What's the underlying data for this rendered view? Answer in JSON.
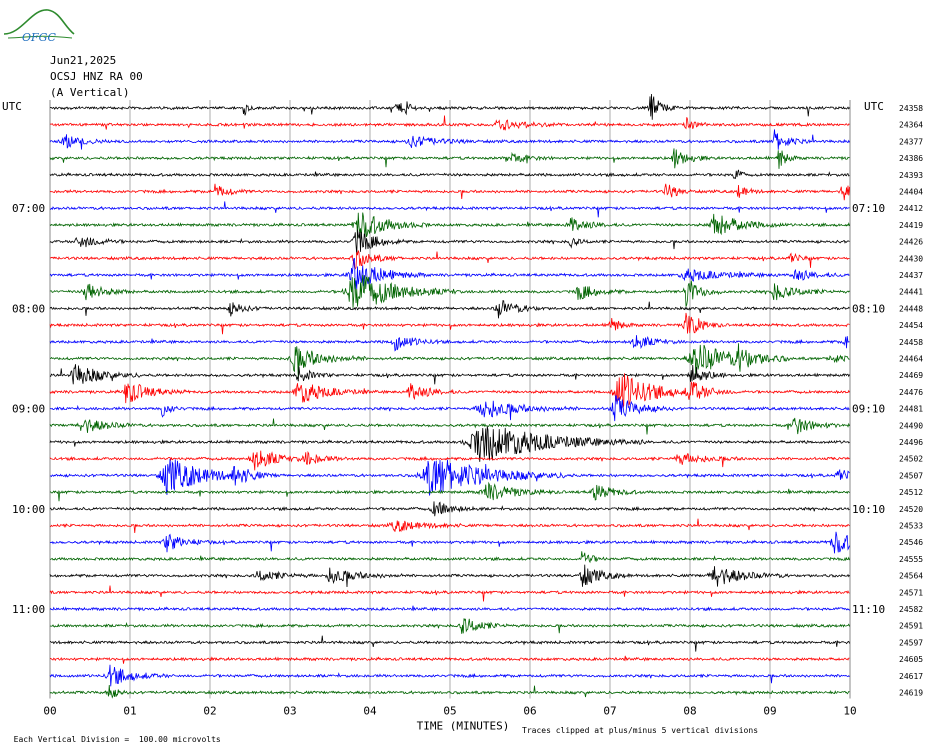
{
  "header": {
    "logo_text": "OFGC",
    "date": "Jun21,2025",
    "station": "OCSJ HNZ RA 00",
    "component": "(A Vertical)"
  },
  "chart_data": {
    "type": "line",
    "title": "",
    "xlabel": "TIME (MINUTES)",
    "xticks": [
      "00",
      "01",
      "02",
      "03",
      "04",
      "05",
      "06",
      "07",
      "08",
      "09",
      "10"
    ],
    "xlim": [
      0,
      10
    ],
    "left_axis_label": "UTC",
    "right_axis_label": "UTC",
    "left_time_labels": [
      {
        "row": 6,
        "label": "07:00"
      },
      {
        "row": 12,
        "label": "08:00"
      },
      {
        "row": 18,
        "label": "09:00"
      },
      {
        "row": 24,
        "label": "10:00"
      },
      {
        "row": 30,
        "label": "11:00"
      }
    ],
    "right_time_labels": [
      {
        "row": 6,
        "label": "07:10"
      },
      {
        "row": 12,
        "label": "08:10"
      },
      {
        "row": 18,
        "label": "09:10"
      },
      {
        "row": 24,
        "label": "10:10"
      },
      {
        "row": 30,
        "label": "11:10"
      }
    ],
    "right_row_numbers": [
      "24358",
      "24364",
      "24377",
      "24386",
      "24393",
      "24404",
      "24412",
      "24419",
      "24426",
      "24430",
      "24437",
      "24441",
      "24448",
      "24454",
      "24458",
      "24464",
      "24469",
      "24476",
      "24481",
      "24490",
      "24496",
      "24502",
      "24507",
      "24512",
      "24520",
      "24533",
      "24546",
      "24555",
      "24564",
      "24571",
      "24582",
      "24591",
      "24597",
      "24605",
      "24617",
      "24619"
    ],
    "trace_colors": [
      "#000000",
      "#ff0000",
      "#0000ff",
      "#006400"
    ],
    "vertical_scale_note": "Each Vertical Division =  100.00 microvolts",
    "clip_note": "Traces clipped at plus/minus 5 vertical divisions",
    "events": [
      {
        "row": 0,
        "t": 2.42,
        "amp": 9,
        "dur": 0.05
      },
      {
        "row": 0,
        "t": 4.32,
        "amp": 8,
        "dur": 0.08
      },
      {
        "row": 0,
        "t": 4.45,
        "amp": 10,
        "dur": 0.05
      },
      {
        "row": 0,
        "t": 7.5,
        "amp": 16,
        "dur": 0.12
      },
      {
        "row": 1,
        "t": 5.6,
        "amp": 6,
        "dur": 0.3
      },
      {
        "row": 1,
        "t": 7.95,
        "amp": 7,
        "dur": 0.1
      },
      {
        "row": 2,
        "t": 0.18,
        "amp": 7,
        "dur": 0.2
      },
      {
        "row": 2,
        "t": 4.5,
        "amp": 6,
        "dur": 0.3
      },
      {
        "row": 2,
        "t": 9.05,
        "amp": 12,
        "dur": 0.15
      },
      {
        "row": 3,
        "t": 5.7,
        "amp": 6,
        "dur": 0.2
      },
      {
        "row": 3,
        "t": 7.8,
        "amp": 10,
        "dur": 0.15
      },
      {
        "row": 3,
        "t": 9.1,
        "amp": 14,
        "dur": 0.08
      },
      {
        "row": 4,
        "t": 8.55,
        "amp": 12,
        "dur": 0.05
      },
      {
        "row": 5,
        "t": 2.05,
        "amp": 8,
        "dur": 0.15
      },
      {
        "row": 5,
        "t": 7.7,
        "amp": 9,
        "dur": 0.12
      },
      {
        "row": 5,
        "t": 8.6,
        "amp": 7,
        "dur": 0.1
      },
      {
        "row": 5,
        "t": 9.9,
        "amp": 11,
        "dur": 0.12
      },
      {
        "row": 7,
        "t": 3.85,
        "amp": 16,
        "dur": 0.3
      },
      {
        "row": 7,
        "t": 6.5,
        "amp": 8,
        "dur": 0.2
      },
      {
        "row": 7,
        "t": 8.3,
        "amp": 12,
        "dur": 0.3
      },
      {
        "row": 8,
        "t": 0.35,
        "amp": 8,
        "dur": 0.2
      },
      {
        "row": 8,
        "t": 3.82,
        "amp": 14,
        "dur": 0.2
      },
      {
        "row": 8,
        "t": 6.5,
        "amp": 6,
        "dur": 0.1
      },
      {
        "row": 9,
        "t": 3.8,
        "amp": 10,
        "dur": 0.2
      },
      {
        "row": 9,
        "t": 9.25,
        "amp": 6,
        "dur": 0.1
      },
      {
        "row": 10,
        "t": 3.78,
        "amp": 18,
        "dur": 0.3
      },
      {
        "row": 10,
        "t": 7.95,
        "amp": 6,
        "dur": 0.4
      },
      {
        "row": 10,
        "t": 9.3,
        "amp": 7,
        "dur": 0.2
      },
      {
        "row": 11,
        "t": 0.45,
        "amp": 10,
        "dur": 0.2
      },
      {
        "row": 11,
        "t": 3.78,
        "amp": 22,
        "dur": 0.45
      },
      {
        "row": 11,
        "t": 6.6,
        "amp": 8,
        "dur": 0.2
      },
      {
        "row": 11,
        "t": 7.95,
        "amp": 16,
        "dur": 0.15
      },
      {
        "row": 11,
        "t": 9.05,
        "amp": 9,
        "dur": 0.25
      },
      {
        "row": 12,
        "t": 2.25,
        "amp": 7,
        "dur": 0.15
      },
      {
        "row": 12,
        "t": 5.6,
        "amp": 10,
        "dur": 0.2
      },
      {
        "row": 13,
        "t": 7.0,
        "amp": 10,
        "dur": 0.1
      },
      {
        "row": 13,
        "t": 7.95,
        "amp": 16,
        "dur": 0.15
      },
      {
        "row": 14,
        "t": 4.3,
        "amp": 9,
        "dur": 0.2
      },
      {
        "row": 14,
        "t": 7.3,
        "amp": 8,
        "dur": 0.2
      },
      {
        "row": 14,
        "t": 9.95,
        "amp": 8,
        "dur": 0.2
      },
      {
        "row": 15,
        "t": 3.05,
        "amp": 14,
        "dur": 0.3
      },
      {
        "row": 15,
        "t": 8.05,
        "amp": 18,
        "dur": 0.4
      },
      {
        "row": 15,
        "t": 8.6,
        "amp": 10,
        "dur": 0.2
      },
      {
        "row": 15,
        "t": 9.75,
        "amp": 6,
        "dur": 0.15
      },
      {
        "row": 16,
        "t": 0.3,
        "amp": 12,
        "dur": 0.3
      },
      {
        "row": 16,
        "t": 3.1,
        "amp": 8,
        "dur": 0.15
      },
      {
        "row": 16,
        "t": 8.0,
        "amp": 14,
        "dur": 0.15
      },
      {
        "row": 17,
        "t": 0.95,
        "amp": 12,
        "dur": 0.25
      },
      {
        "row": 17,
        "t": 3.1,
        "amp": 12,
        "dur": 0.3
      },
      {
        "row": 17,
        "t": 4.5,
        "amp": 10,
        "dur": 0.2
      },
      {
        "row": 17,
        "t": 7.1,
        "amp": 22,
        "dur": 0.35
      },
      {
        "row": 17,
        "t": 8.0,
        "amp": 12,
        "dur": 0.2
      },
      {
        "row": 18,
        "t": 1.4,
        "amp": 8,
        "dur": 0.1
      },
      {
        "row": 18,
        "t": 5.4,
        "amp": 10,
        "dur": 0.4
      },
      {
        "row": 18,
        "t": 7.05,
        "amp": 14,
        "dur": 0.25
      },
      {
        "row": 19,
        "t": 0.4,
        "amp": 9,
        "dur": 0.25
      },
      {
        "row": 19,
        "t": 9.3,
        "amp": 10,
        "dur": 0.2
      },
      {
        "row": 20,
        "t": 5.35,
        "amp": 22,
        "dur": 0.7
      },
      {
        "row": 21,
        "t": 2.55,
        "amp": 12,
        "dur": 0.25
      },
      {
        "row": 21,
        "t": 3.2,
        "amp": 6,
        "dur": 0.2
      },
      {
        "row": 21,
        "t": 7.85,
        "amp": 6,
        "dur": 0.3
      },
      {
        "row": 22,
        "t": 1.45,
        "amp": 20,
        "dur": 0.4
      },
      {
        "row": 22,
        "t": 2.3,
        "amp": 8,
        "dur": 0.2
      },
      {
        "row": 22,
        "t": 4.75,
        "amp": 22,
        "dur": 0.6
      },
      {
        "row": 22,
        "t": 9.85,
        "amp": 7,
        "dur": 0.15
      },
      {
        "row": 23,
        "t": 5.45,
        "amp": 10,
        "dur": 0.3
      },
      {
        "row": 23,
        "t": 6.8,
        "amp": 9,
        "dur": 0.2
      },
      {
        "row": 24,
        "t": 4.8,
        "amp": 8,
        "dur": 0.2
      },
      {
        "row": 25,
        "t": 4.3,
        "amp": 6,
        "dur": 0.3
      },
      {
        "row": 26,
        "t": 1.45,
        "amp": 10,
        "dur": 0.2
      },
      {
        "row": 26,
        "t": 9.8,
        "amp": 12,
        "dur": 0.25
      },
      {
        "row": 27,
        "t": 6.65,
        "amp": 9,
        "dur": 0.1
      },
      {
        "row": 28,
        "t": 2.6,
        "amp": 6,
        "dur": 0.25
      },
      {
        "row": 28,
        "t": 3.5,
        "amp": 8,
        "dur": 0.3
      },
      {
        "row": 28,
        "t": 6.65,
        "amp": 12,
        "dur": 0.2
      },
      {
        "row": 28,
        "t": 8.3,
        "amp": 12,
        "dur": 0.3
      },
      {
        "row": 31,
        "t": 5.15,
        "amp": 10,
        "dur": 0.2
      },
      {
        "row": 34,
        "t": 0.75,
        "amp": 10,
        "dur": 0.25
      },
      {
        "row": 35,
        "t": 0.72,
        "amp": 8,
        "dur": 0.1
      }
    ]
  }
}
